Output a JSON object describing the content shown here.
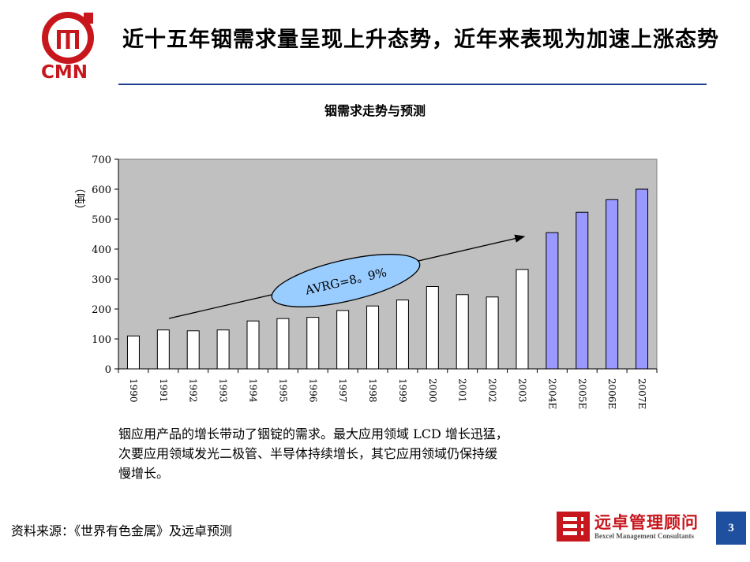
{
  "header": {
    "title": "近十五年铟需求量呈现上升态势，近年来表现为加速上涨态势",
    "logo_text": "CMN"
  },
  "chart_data": {
    "type": "bar",
    "title": "铟需求走势与预测",
    "ylabel": "（吨）",
    "xlabel": "",
    "ylim": [
      0,
      700
    ],
    "yticks": [
      0,
      100,
      200,
      300,
      400,
      500,
      600,
      700
    ],
    "grid": false,
    "categories": [
      "1990",
      "1991",
      "1992",
      "1993",
      "1994",
      "1995",
      "1996",
      "1997",
      "1998",
      "1999",
      "2000",
      "2001",
      "2002",
      "2003",
      "2004E",
      "2005E",
      "2006E",
      "2007E"
    ],
    "values": [
      110,
      130,
      127,
      130,
      160,
      168,
      172,
      195,
      210,
      230,
      275,
      248,
      240,
      332,
      455,
      523,
      565,
      600
    ],
    "forecast_from_index": 14,
    "colors": {
      "actual": "#ffffff",
      "forecast": "#9999ff",
      "plot_background": "#c0c0c0",
      "annotation_fill": "#99ccff"
    },
    "annotation": "AVRG=8。9%"
  },
  "caption": {
    "lines": [
      "铟应用产品的增长带动了铟锭的需求。最大应用领域 LCD 增长迅猛，",
      "次要应用领域发光二极管、半导体持续增长，其它应用领域仍保持缓",
      "慢增长。"
    ]
  },
  "footer": {
    "source": "资料来源：《世界有色金属》及远卓预测",
    "company_name": "远卓管理顾问",
    "company_sub": "Bexcel Management Consultants",
    "page_number": "3"
  }
}
